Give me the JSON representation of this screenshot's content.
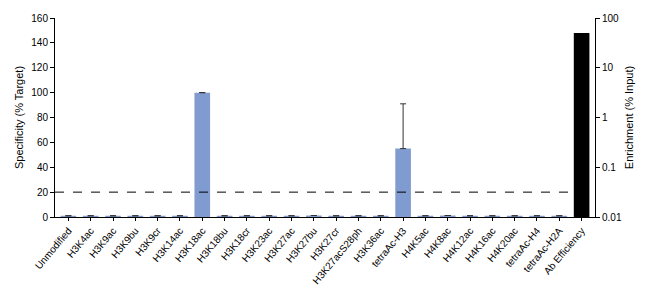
{
  "chart_data": {
    "type": "bar",
    "categories": [
      "Unmodified",
      "H3K4ac",
      "H3K9ac",
      "H3K9bu",
      "H3K9cr",
      "H3K14ac",
      "H3K18ac",
      "H3K18bu",
      "H3K18cr",
      "H3K23ac",
      "H3K27ac",
      "H3K27bu",
      "H3K27cr",
      "H3K27acS28ph",
      "H3K36ac",
      "tetraAc-H3",
      "H4K5ac",
      "H4K8ac",
      "H4K12ac",
      "H4K16ac",
      "H4K20ac",
      "tetraAc-H4",
      "tetraAc-H2A",
      "Ab Efficiency"
    ],
    "y_label": "Specificity (% Target)",
    "y2_label": "Enrichment (% Input)",
    "series": [
      {
        "color": "#7f9bd0",
        "axis": "y",
        "values": [
          1,
          1,
          1,
          1,
          1,
          1,
          100,
          1,
          1,
          1,
          1,
          1.2,
          1,
          1,
          1,
          55,
          1,
          1.2,
          1,
          1,
          1,
          1,
          1,
          null
        ],
        "errors": [
          null,
          null,
          null,
          null,
          null,
          null,
          null,
          null,
          null,
          null,
          null,
          null,
          null,
          null,
          null,
          36,
          null,
          null,
          null,
          null,
          null,
          null,
          null,
          null
        ]
      },
      {
        "color": "#000000",
        "axis": "y2",
        "values": [
          null,
          null,
          null,
          null,
          null,
          null,
          null,
          null,
          null,
          null,
          null,
          null,
          null,
          null,
          null,
          null,
          null,
          null,
          null,
          null,
          null,
          null,
          null,
          50
        ]
      }
    ],
    "reference_line": 20,
    "ylim": [
      0,
      160
    ],
    "yticks": [
      0,
      20,
      40,
      60,
      80,
      100,
      120,
      140,
      160
    ],
    "y2lim": [
      0.01,
      100
    ],
    "y2ticks": [
      0.01,
      0.1,
      1,
      10,
      100
    ],
    "log": "y2",
    "grid": false
  }
}
